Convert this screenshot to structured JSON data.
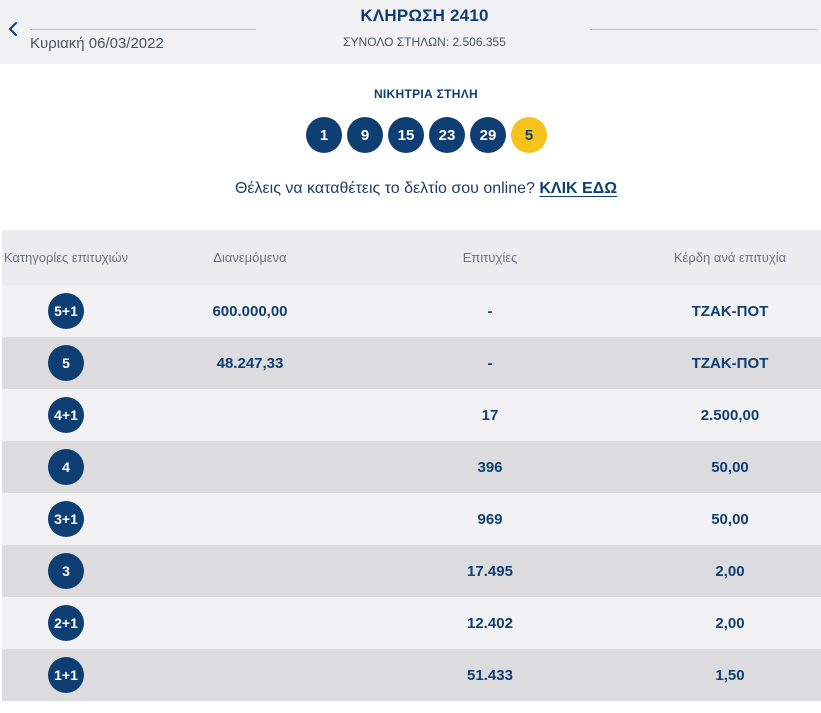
{
  "header": {
    "date": "Κυριακή 06/03/2022",
    "title": "ΚΛΗΡΩΣΗ 2410",
    "total_columns": "ΣΥΝΟΛΟ ΣΤΗΛΩΝ: 2.506.355"
  },
  "winning": {
    "label": "ΝΙΚΗΤΡΙΑ ΣΤΗΛΗ",
    "numbers": [
      "1",
      "9",
      "15",
      "23",
      "29"
    ],
    "joker": "5"
  },
  "online": {
    "text": "Θέλεις να καταθέτεις το δελτίο σου online?",
    "link": "ΚΛΙΚ ΕΔΩ"
  },
  "table": {
    "headers": {
      "category": "Κατηγορίες επιτυχιών",
      "distributed": "Διανεμόμενα",
      "winners": "Επιτυχίες",
      "prize": "Κέρδη ανά επιτυχία"
    },
    "rows": [
      {
        "category": "5+1",
        "distributed": "600.000,00",
        "winners": "-",
        "prize": "ΤΖΑΚ-ΠΟΤ"
      },
      {
        "category": "5",
        "distributed": "48.247,33",
        "winners": "-",
        "prize": "ΤΖΑΚ-ΠΟΤ"
      },
      {
        "category": "4+1",
        "distributed": "",
        "winners": "17",
        "prize": "2.500,00"
      },
      {
        "category": "4",
        "distributed": "",
        "winners": "396",
        "prize": "50,00"
      },
      {
        "category": "3+1",
        "distributed": "",
        "winners": "969",
        "prize": "50,00"
      },
      {
        "category": "3",
        "distributed": "",
        "winners": "17.495",
        "prize": "2,00"
      },
      {
        "category": "2+1",
        "distributed": "",
        "winners": "12.402",
        "prize": "2,00"
      },
      {
        "category": "1+1",
        "distributed": "",
        "winners": "51.433",
        "prize": "1,50"
      }
    ]
  },
  "colors": {
    "brand_blue": "#0f3e73",
    "joker_yellow": "#f5c31b"
  }
}
